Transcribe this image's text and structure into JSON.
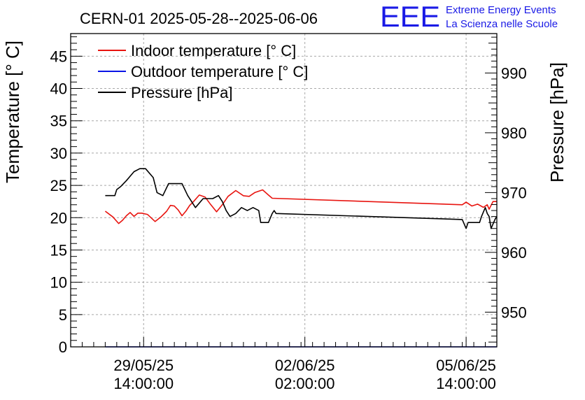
{
  "chart_data": {
    "type": "line",
    "title": "CERN-01 2025-05-28--2025-06-06",
    "ylabel_left": "Temperature [° C]",
    "ylabel_right": "Pressure [hPa]",
    "ylim_left": [
      0,
      48.5
    ],
    "ylim_right": [
      944.2,
      996.6
    ],
    "yticks_left": [
      "0",
      "5",
      "10",
      "15",
      "20",
      "25",
      "30",
      "35",
      "40",
      "45"
    ],
    "yticks_right": [
      "950",
      "960",
      "970",
      "980",
      "990"
    ],
    "xticks": [
      {
        "date": "29/05/25",
        "time": "14:00:00",
        "t": "2025-05-29T14:00:00"
      },
      {
        "date": "02/06/25",
        "time": "02:00:00",
        "t": "2025-06-02T02:00:00"
      },
      {
        "date": "05/06/25",
        "time": "14:00:00",
        "t": "2025-06-05T14:00:00"
      }
    ],
    "xlim": [
      "2025-05-28T00:00:00",
      "2025-06-06T06:00:00"
    ],
    "grid": true,
    "legend_position": "top-left",
    "series": [
      {
        "name": "Indoor temperature [° C]",
        "color": "#e8140f",
        "axis": "left",
        "points": [
          [
            "2025-05-28T18:00:00",
            21.0
          ],
          [
            "2025-05-28T22:00:00",
            20.1
          ],
          [
            "2025-05-29T01:00:00",
            19.1
          ],
          [
            "2025-05-29T03:00:00",
            19.6
          ],
          [
            "2025-05-29T05:00:00",
            20.3
          ],
          [
            "2025-05-29T07:00:00",
            20.8
          ],
          [
            "2025-05-29T09:00:00",
            20.2
          ],
          [
            "2025-05-29T11:00:00",
            20.7
          ],
          [
            "2025-05-29T13:00:00",
            20.7
          ],
          [
            "2025-05-29T16:00:00",
            20.5
          ],
          [
            "2025-05-29T20:00:00",
            19.4
          ],
          [
            "2025-05-29T23:00:00",
            20.1
          ],
          [
            "2025-05-30T02:00:00",
            21.0
          ],
          [
            "2025-05-30T04:00:00",
            21.9
          ],
          [
            "2025-05-30T06:00:00",
            21.8
          ],
          [
            "2025-05-30T08:00:00",
            21.2
          ],
          [
            "2025-05-30T10:00:00",
            20.3
          ],
          [
            "2025-05-30T12:00:00",
            21.0
          ],
          [
            "2025-05-30T14:00:00",
            21.9
          ],
          [
            "2025-05-30T16:00:00",
            22.5
          ],
          [
            "2025-05-30T19:00:00",
            23.5
          ],
          [
            "2025-05-30T22:00:00",
            23.2
          ],
          [
            "2025-05-31T01:00:00",
            22.0
          ],
          [
            "2025-05-31T04:00:00",
            20.9
          ],
          [
            "2025-05-31T07:00:00",
            22.0
          ],
          [
            "2025-05-31T10:00:00",
            23.3
          ],
          [
            "2025-05-31T14:00:00",
            24.2
          ],
          [
            "2025-05-31T18:00:00",
            23.4
          ],
          [
            "2025-05-31T21:00:00",
            23.3
          ],
          [
            "2025-06-01T00:00:00",
            23.9
          ],
          [
            "2025-06-01T04:00:00",
            24.3
          ],
          [
            "2025-06-01T07:00:00",
            23.5
          ],
          [
            "2025-06-01T09:00:00",
            23.0
          ],
          [
            "2025-06-05T12:00:00",
            22.0
          ],
          [
            "2025-06-05T14:00:00",
            22.4
          ],
          [
            "2025-06-05T17:00:00",
            21.8
          ],
          [
            "2025-06-05T20:00:00",
            22.1
          ],
          [
            "2025-06-05T23:00:00",
            21.6
          ],
          [
            "2025-06-06T01:00:00",
            22.0
          ],
          [
            "2025-06-06T02:00:00",
            21.3
          ],
          [
            "2025-06-06T04:00:00",
            22.5
          ],
          [
            "2025-06-06T06:00:00",
            22.5
          ]
        ]
      },
      {
        "name": "Outdoor temperature [° C]",
        "color": "#0a14e6",
        "axis": "left",
        "points": [
          [
            "2025-05-28T18:00:00",
            0.0
          ],
          [
            "2025-06-06T06:00:00",
            0.0
          ]
        ]
      },
      {
        "name": "Pressure [hPa]",
        "color": "#000000",
        "axis": "right",
        "points": [
          [
            "2025-05-28T18:00:00",
            969.5
          ],
          [
            "2025-05-28T23:00:00",
            969.5
          ],
          [
            "2025-05-29T00:00:00",
            970.5
          ],
          [
            "2025-05-29T02:00:00",
            971.0
          ],
          [
            "2025-05-29T05:00:00",
            972.0
          ],
          [
            "2025-05-29T09:00:00",
            973.5
          ],
          [
            "2025-05-29T12:00:00",
            974.0
          ],
          [
            "2025-05-29T15:00:00",
            974.0
          ],
          [
            "2025-05-29T19:00:00",
            972.5
          ],
          [
            "2025-05-29T21:00:00",
            970.0
          ],
          [
            "2025-05-30T00:00:00",
            969.5
          ],
          [
            "2025-05-30T03:00:00",
            971.5
          ],
          [
            "2025-05-30T10:00:00",
            971.5
          ],
          [
            "2025-05-30T13:00:00",
            969.5
          ],
          [
            "2025-05-30T17:00:00",
            967.5
          ],
          [
            "2025-05-30T21:00:00",
            969.0
          ],
          [
            "2025-05-31T02:00:00",
            969.0
          ],
          [
            "2025-05-31T05:00:00",
            969.5
          ],
          [
            "2025-05-31T07:00:00",
            968.5
          ],
          [
            "2025-05-31T09:00:00",
            967.0
          ],
          [
            "2025-05-31T11:00:00",
            966.0
          ],
          [
            "2025-05-31T14:00:00",
            966.5
          ],
          [
            "2025-05-31T17:00:00",
            967.5
          ],
          [
            "2025-05-31T20:00:00",
            967.0
          ],
          [
            "2025-05-31T23:00:00",
            967.5
          ],
          [
            "2025-06-01T02:00:00",
            967.0
          ],
          [
            "2025-06-01T03:00:00",
            965.0
          ],
          [
            "2025-06-01T07:00:00",
            965.0
          ],
          [
            "2025-06-01T09:00:00",
            966.5
          ],
          [
            "2025-06-01T10:00:00",
            967.0
          ],
          [
            "2025-06-01T11:00:00",
            966.5
          ],
          [
            "2025-06-05T12:00:00",
            965.5
          ],
          [
            "2025-06-05T14:00:00",
            964.0
          ],
          [
            "2025-06-05T15:00:00",
            965.0
          ],
          [
            "2025-06-05T21:00:00",
            965.0
          ],
          [
            "2025-06-05T22:00:00",
            966.0
          ],
          [
            "2025-06-06T00:00:00",
            967.5
          ],
          [
            "2025-06-06T01:00:00",
            966.5
          ],
          [
            "2025-06-06T02:00:00",
            966.0
          ],
          [
            "2025-06-06T03:00:00",
            964.0
          ],
          [
            "2025-06-06T05:00:00",
            965.5
          ],
          [
            "2025-06-06T06:00:00",
            966.0
          ]
        ]
      }
    ]
  },
  "logo": {
    "mark": "EEE",
    "line1": "Extreme Energy Events",
    "line2": "La Scienza nelle Scuole",
    "color": "#1a1ae6"
  }
}
